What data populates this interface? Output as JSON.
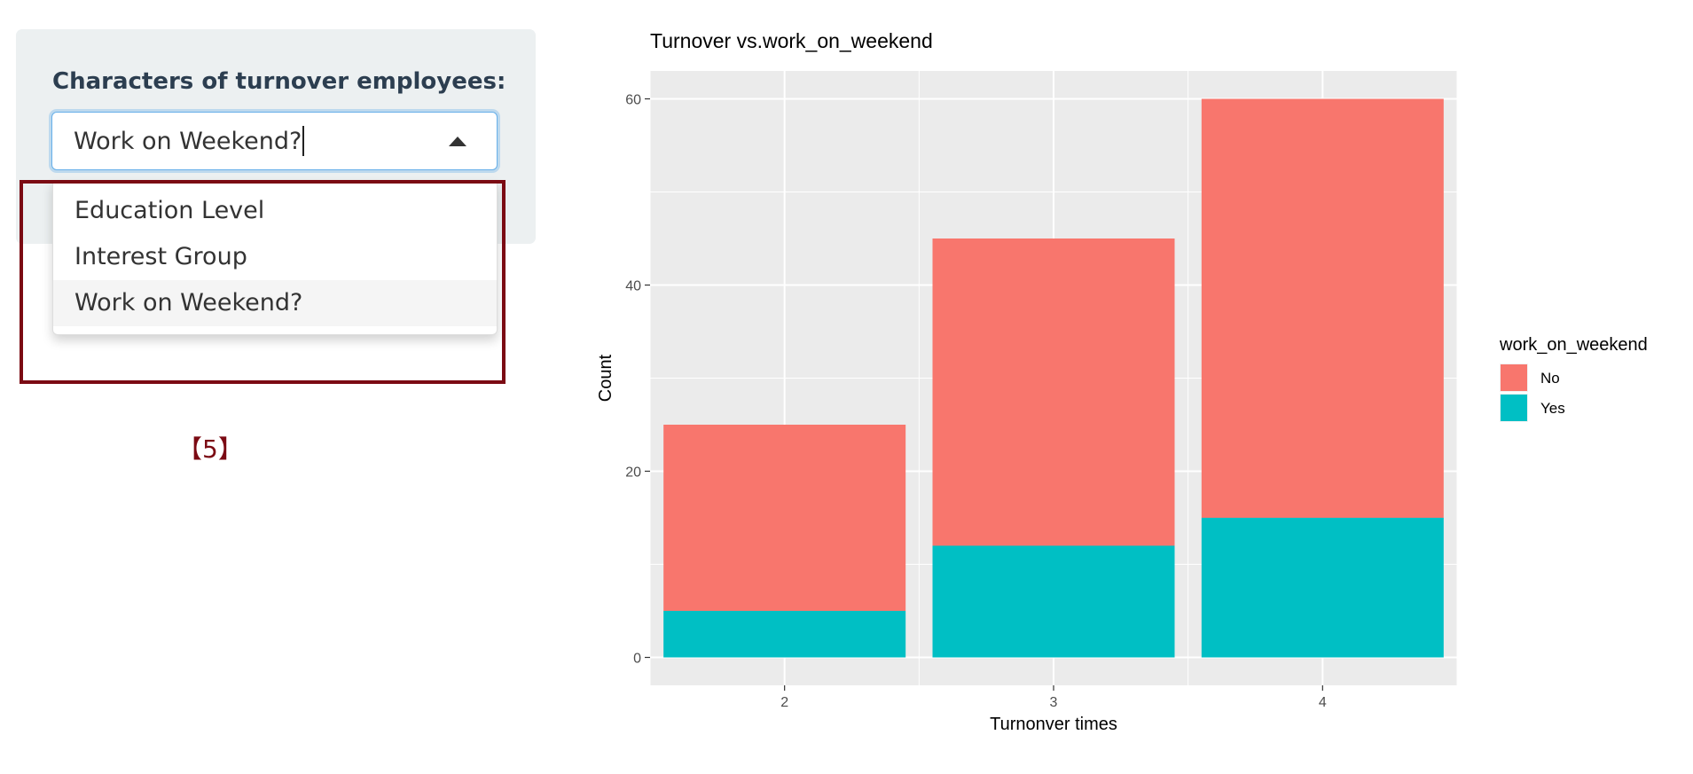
{
  "sidebar": {
    "label": "Characters of turnover employees:",
    "select": {
      "value": "Work on Weekend?",
      "options": [
        "Education Level",
        "Interest Group",
        "Work on Weekend?"
      ],
      "active_index": 2
    },
    "annotation": "【5】"
  },
  "colors": {
    "no": "#f8766d",
    "yes": "#00bfc4",
    "panel_bg": "#ebebeb",
    "highlight": "#7b0a13"
  },
  "chart_data": {
    "type": "bar",
    "stacked": true,
    "title": "Turnover vs.work_on_weekend",
    "xlabel": "Turnonver times",
    "ylabel": "Count",
    "categories": [
      "2",
      "3",
      "4"
    ],
    "series": [
      {
        "name": "No",
        "values": [
          20,
          33,
          45
        ],
        "color": "#f8766d"
      },
      {
        "name": "Yes",
        "values": [
          5,
          12,
          15
        ],
        "color": "#00bfc4"
      }
    ],
    "yticks": [
      0,
      20,
      40,
      60
    ],
    "ylim": [
      -3,
      63
    ],
    "grid": true,
    "legend": {
      "title": "work_on_weekend",
      "position": "right"
    }
  }
}
